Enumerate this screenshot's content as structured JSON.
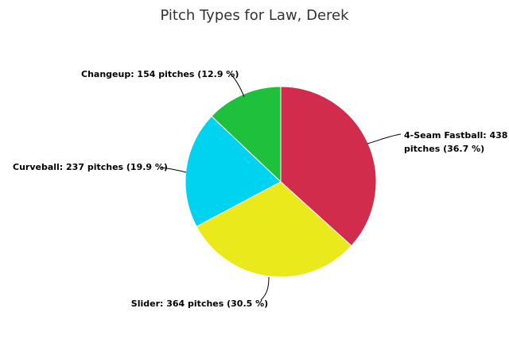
{
  "chart_data": {
    "type": "pie",
    "title": "Pitch Types for Law, Derek",
    "slices": [
      {
        "name": "4-Seam Fastball",
        "pitches": 438,
        "percent": 36.7,
        "color": "#d22c4c",
        "label_lines": [
          "4-Seam Fastball: 438",
          "pitches (36.7 %)"
        ]
      },
      {
        "name": "Slider",
        "pitches": 364,
        "percent": 30.5,
        "color": "#eae91c",
        "label_lines": [
          "Slider: 364 pitches (30.5 %)"
        ]
      },
      {
        "name": "Curveball",
        "pitches": 237,
        "percent": 19.9,
        "color": "#00d3ef",
        "label_lines": [
          "Curveball: 237 pitches (19.9 %)"
        ]
      },
      {
        "name": "Changeup",
        "pitches": 154,
        "percent": 12.9,
        "color": "#1fc03c",
        "label_lines": [
          "Changeup: 154 pitches (12.9 %)"
        ]
      }
    ]
  }
}
